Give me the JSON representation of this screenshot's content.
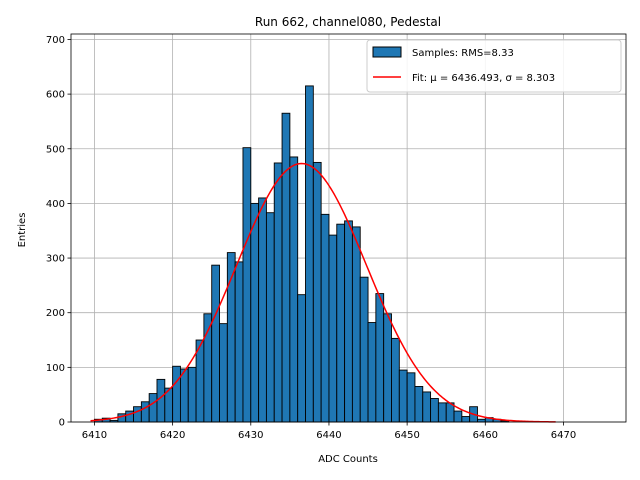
{
  "chart_data": {
    "type": "bar",
    "title": "Run 662, channel080, Pedestal",
    "xlabel": "ADC Counts",
    "ylabel": "Entries",
    "xlim": [
      6407,
      6478
    ],
    "ylim": [
      0,
      710
    ],
    "xticks": [
      6410,
      6420,
      6430,
      6440,
      6450,
      6460,
      6470
    ],
    "yticks": [
      0,
      100,
      200,
      300,
      400,
      500,
      600,
      700
    ],
    "grid": true,
    "legend_placement": "top-right",
    "bin_width": 1,
    "bins": [
      6410,
      6411,
      6412,
      6413,
      6414,
      6415,
      6416,
      6417,
      6418,
      6419,
      6420,
      6421,
      6422,
      6423,
      6424,
      6425,
      6426,
      6427,
      6428,
      6429,
      6430,
      6431,
      6432,
      6433,
      6434,
      6435,
      6436,
      6437,
      6438,
      6439,
      6440,
      6441,
      6442,
      6443,
      6444,
      6445,
      6446,
      6447,
      6448,
      6449,
      6450,
      6451,
      6452,
      6453,
      6454,
      6455,
      6456,
      6457,
      6458,
      6459,
      6460,
      6461,
      6462
    ],
    "series": [
      {
        "name": "Samples: RMS=8.33",
        "kind": "histogram",
        "color": "#1f77b4",
        "values": [
          5,
          7,
          3,
          15,
          20,
          28,
          37,
          52,
          78,
          62,
          102,
          97,
          100,
          150,
          198,
          287,
          180,
          310,
          293,
          502,
          400,
          410,
          383,
          474,
          565,
          485,
          233,
          615,
          475,
          380,
          342,
          362,
          368,
          357,
          265,
          182,
          235,
          198,
          153,
          95,
          90,
          65,
          55,
          43,
          35,
          35,
          20,
          10,
          28,
          5,
          8,
          5,
          2
        ]
      },
      {
        "name": "Fit: μ = 6436.493, σ = 8.303",
        "kind": "fit",
        "color": "#ff0000",
        "mu": 6436.493,
        "sigma": 8.303,
        "amplitude": 473,
        "x_range": [
          6409.5,
          6469
        ]
      }
    ],
    "legend_entries": [
      "Samples: RMS=8.33",
      "Fit: μ = 6436.493, σ = 8.303"
    ]
  }
}
